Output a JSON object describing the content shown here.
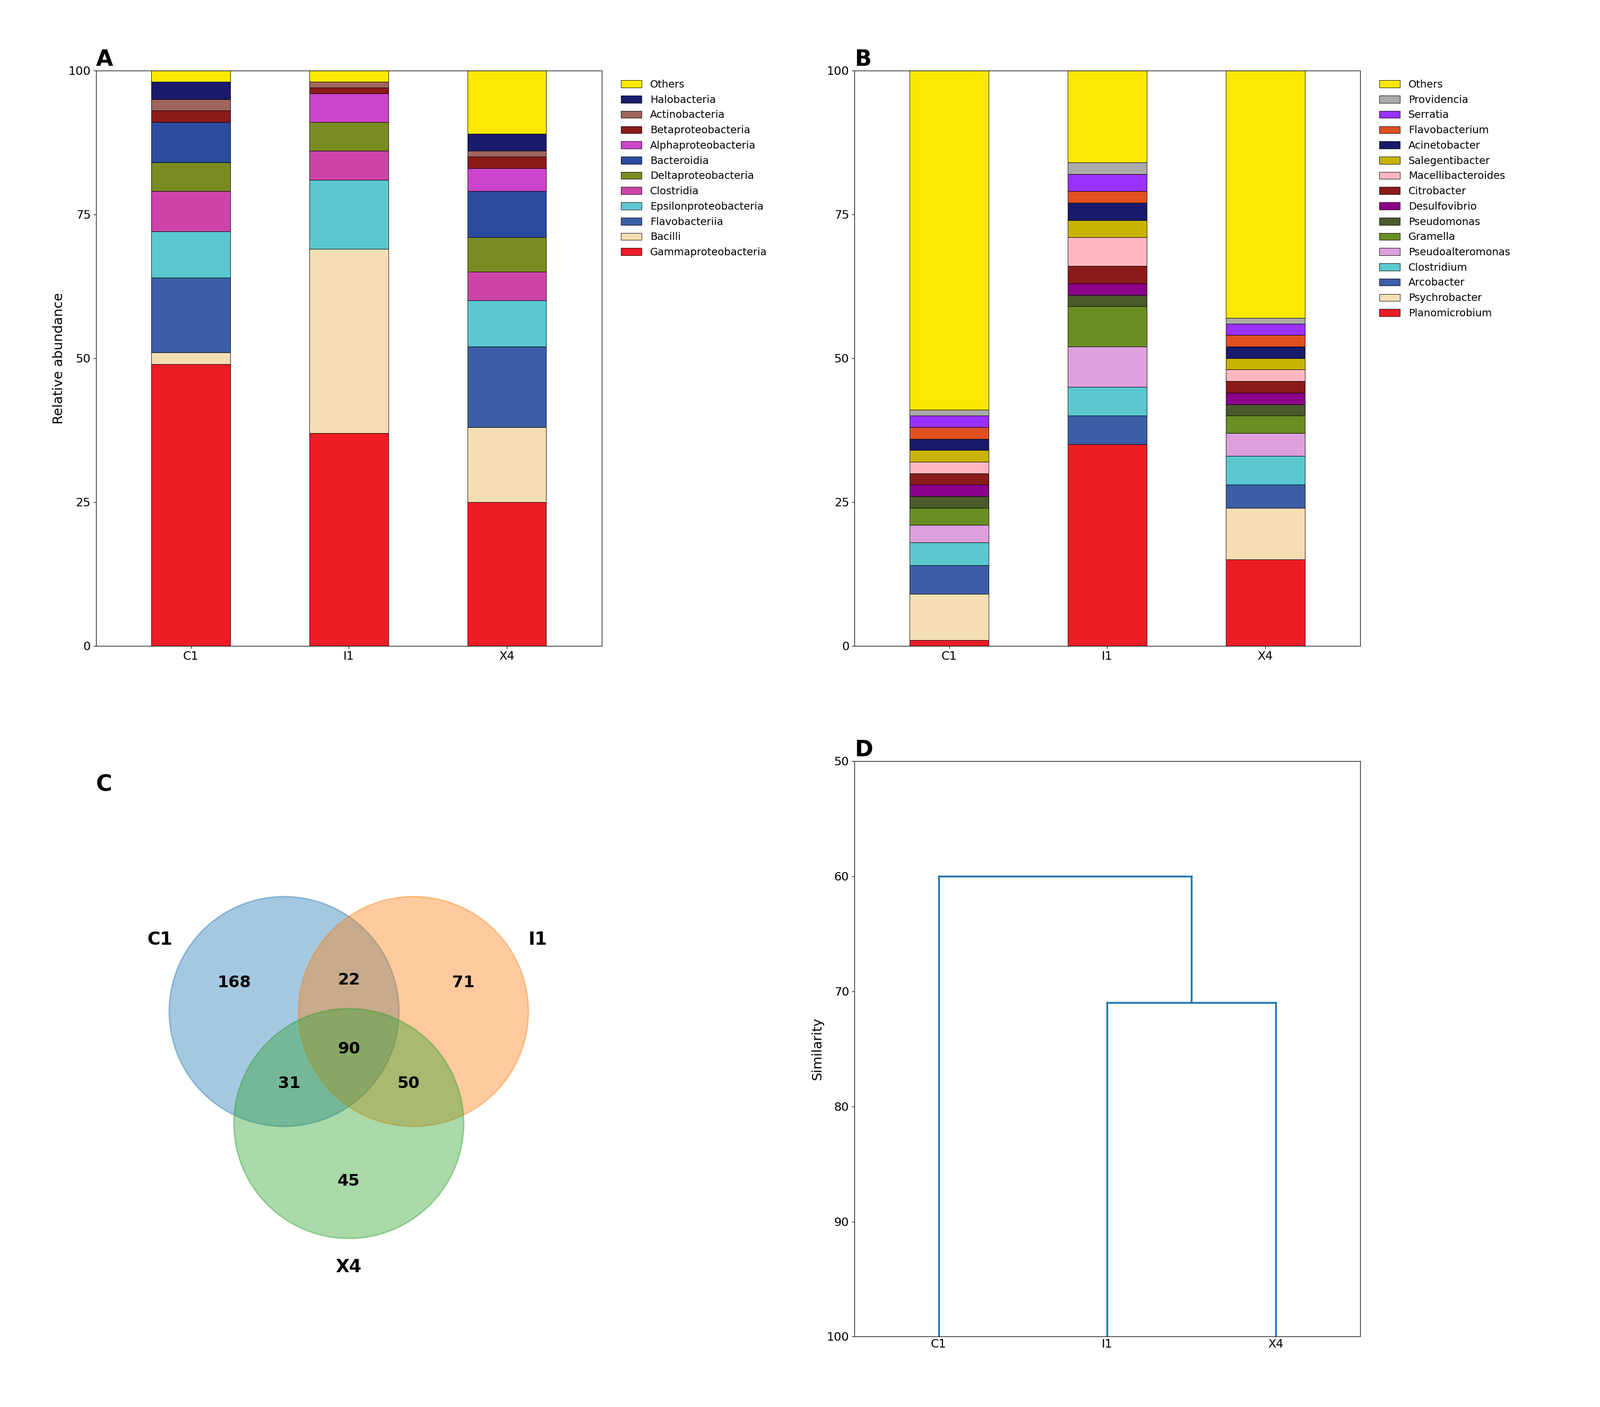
{
  "chart_data": [
    {
      "type": "bar",
      "stacked": true,
      "title": "A",
      "categories": [
        "C1",
        "I1",
        "X4"
      ],
      "series": [
        {
          "name": "Gammaproteobacteria",
          "color": "#EE1C25",
          "values": [
            49,
            37,
            25
          ]
        },
        {
          "name": "Bacilli",
          "color": "#F5DEB3",
          "values": [
            2,
            32,
            13
          ]
        },
        {
          "name": "Flavobacteriia",
          "color": "#3B5EA6",
          "values": [
            13,
            0,
            14
          ]
        },
        {
          "name": "Epsilonproteobacteria",
          "color": "#5BC8D0",
          "values": [
            8,
            12,
            8
          ]
        },
        {
          "name": "Clostridia",
          "color": "#CC44AA",
          "values": [
            7,
            5,
            5
          ]
        },
        {
          "name": "Deltaproteobacteria",
          "color": "#7A8B22",
          "values": [
            5,
            5,
            6
          ]
        },
        {
          "name": "Bacteroidia",
          "color": "#2B4C9E",
          "values": [
            7,
            0,
            8
          ]
        },
        {
          "name": "Alphaproteobacteria",
          "color": "#CC44CC",
          "values": [
            0,
            5,
            4
          ]
        },
        {
          "name": "Betaproteobacteria",
          "color": "#8B1A1A",
          "values": [
            2,
            1,
            2
          ]
        },
        {
          "name": "Actinobacteria",
          "color": "#A0665C",
          "values": [
            2,
            1,
            1
          ]
        },
        {
          "name": "Halobacteria",
          "color": "#1A1A6C",
          "values": [
            3,
            0,
            3
          ]
        },
        {
          "name": "Others",
          "color": "#FFE800",
          "values": [
            2,
            2,
            11
          ]
        }
      ],
      "ylabel": "Relative abundance",
      "ylim": [
        0,
        100
      ],
      "yticks": [
        0,
        25,
        50,
        75,
        100
      ],
      "legend": "right"
    },
    {
      "type": "bar",
      "stacked": true,
      "title": "B",
      "categories": [
        "C1",
        "I1",
        "X4"
      ],
      "series": [
        {
          "name": "Planomicrobium",
          "color": "#EE1C25",
          "values": [
            1,
            35,
            15
          ]
        },
        {
          "name": "Psychrobacter",
          "color": "#F5DEB3",
          "values": [
            8,
            0,
            9
          ]
        },
        {
          "name": "Arcobacter",
          "color": "#3B5EA6",
          "values": [
            5,
            5,
            4
          ]
        },
        {
          "name": "Clostridium",
          "color": "#5BC8D0",
          "values": [
            4,
            5,
            5
          ]
        },
        {
          "name": "Pseudoalteromonas",
          "color": "#DDA0DD",
          "values": [
            3,
            7,
            4
          ]
        },
        {
          "name": "Gramella",
          "color": "#6B8E23",
          "values": [
            3,
            7,
            3
          ]
        },
        {
          "name": "Pseudomonas",
          "color": "#4A5A2A",
          "values": [
            2,
            2,
            2
          ]
        },
        {
          "name": "Desulfovibrio",
          "color": "#8B008B",
          "values": [
            2,
            2,
            2
          ]
        },
        {
          "name": "Citrobacter",
          "color": "#8B1A1A",
          "values": [
            2,
            3,
            2
          ]
        },
        {
          "name": "Macellibacteroides",
          "color": "#FFB6C1",
          "values": [
            2,
            5,
            2
          ]
        },
        {
          "name": "Salegentibacter",
          "color": "#C8B400",
          "values": [
            2,
            3,
            2
          ]
        },
        {
          "name": "Acinetobacter",
          "color": "#1A1A6C",
          "values": [
            2,
            3,
            2
          ]
        },
        {
          "name": "Flavobacterium",
          "color": "#E05020",
          "values": [
            2,
            2,
            2
          ]
        },
        {
          "name": "Serratia",
          "color": "#9B30FF",
          "values": [
            2,
            3,
            2
          ]
        },
        {
          "name": "Providencia",
          "color": "#AAAAAA",
          "values": [
            1,
            2,
            1
          ]
        },
        {
          "name": "Others",
          "color": "#FFE800",
          "values": [
            59,
            16,
            43
          ]
        }
      ],
      "ylim": [
        0,
        100
      ],
      "yticks": [
        0,
        25,
        50,
        75,
        100
      ],
      "legend": "right"
    },
    {
      "type": "venn",
      "title": "C",
      "sets": [
        "C1",
        "I1",
        "X4"
      ],
      "regions": [
        {
          "sets": [
            "C1"
          ],
          "value": 168
        },
        {
          "sets": [
            "C1",
            "I1"
          ],
          "value": 22
        },
        {
          "sets": [
            "I1"
          ],
          "value": 71
        },
        {
          "sets": [
            "C1",
            "X4"
          ],
          "value": 31
        },
        {
          "sets": [
            "I1",
            "X4"
          ],
          "value": 50
        },
        {
          "sets": [
            "C1",
            "I1",
            "X4"
          ],
          "value": 90
        },
        {
          "sets": [
            "X4"
          ],
          "value": 45
        }
      ]
    },
    {
      "type": "dendrogram",
      "title": "D",
      "categories": [
        "C1",
        "I1",
        "X4"
      ],
      "leaf_value": 100,
      "merges": [
        {
          "members": [
            "I1",
            "X4"
          ],
          "value": 71
        },
        {
          "members": [
            "C1",
            "I1",
            "X4"
          ],
          "value": 60
        }
      ],
      "ylabel": "Similarity",
      "ylim": [
        100,
        50
      ],
      "yticks": [
        50,
        60,
        70,
        80,
        90,
        100
      ]
    }
  ]
}
